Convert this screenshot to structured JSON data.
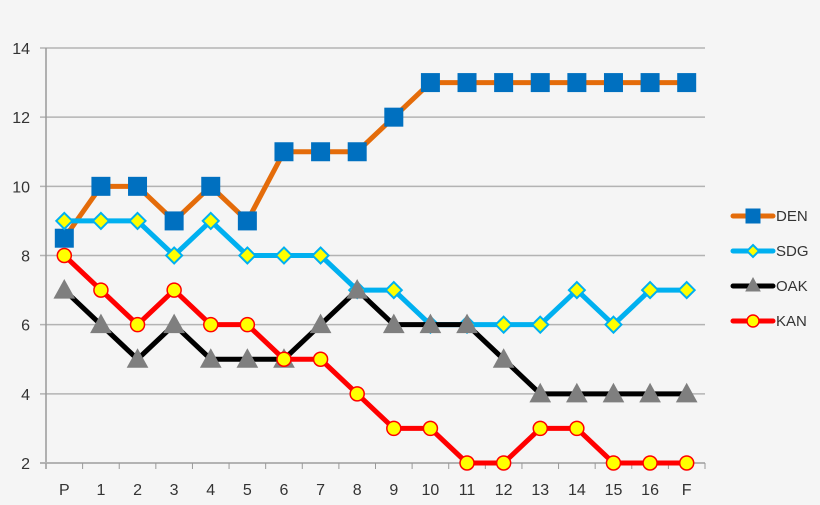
{
  "chart_data": {
    "type": "line",
    "title": "",
    "xlabel": "",
    "ylabel": "",
    "categories": [
      "P",
      "1",
      "2",
      "3",
      "4",
      "5",
      "6",
      "7",
      "8",
      "9",
      "10",
      "11",
      "12",
      "13",
      "14",
      "15",
      "16",
      "F"
    ],
    "ylim": [
      2,
      14
    ],
    "yticks": [
      2,
      4,
      6,
      8,
      10,
      12,
      14
    ],
    "grid": true,
    "legend_position": "right",
    "series": [
      {
        "name": "DEN",
        "line_color": "#e46c0a",
        "marker": "square",
        "marker_fill": "#0070c0",
        "marker_stroke": "#0070c0",
        "values": [
          8.5,
          10,
          10,
          9,
          10,
          9,
          11,
          11,
          11,
          12,
          13,
          13,
          13,
          13,
          13,
          13,
          13,
          13
        ]
      },
      {
        "name": "SDG",
        "line_color": "#00b0f0",
        "marker": "diamond",
        "marker_fill": "#ffff00",
        "marker_stroke": "#00b0f0",
        "values": [
          9,
          9,
          9,
          8,
          9,
          8,
          8,
          8,
          7,
          7,
          6,
          6,
          6,
          6,
          7,
          6,
          7,
          7
        ]
      },
      {
        "name": "OAK",
        "line_color": "#000000",
        "marker": "triangle",
        "marker_fill": "#7f7f7f",
        "marker_stroke": "#7f7f7f",
        "values": [
          7,
          6,
          5,
          6,
          5,
          5,
          5,
          6,
          7,
          6,
          6,
          6,
          5,
          4,
          4,
          4,
          4,
          4
        ]
      },
      {
        "name": "KAN",
        "line_color": "#ff0000",
        "marker": "circle",
        "marker_fill": "#ffff00",
        "marker_stroke": "#ff0000",
        "values": [
          8,
          7,
          6,
          7,
          6,
          6,
          5,
          5,
          4,
          3,
          3,
          2,
          2,
          3,
          3,
          2,
          2,
          2
        ]
      }
    ]
  },
  "colors": {
    "background": "#f5f5f5",
    "gridline": "#b3b3b3",
    "axis": "#999999",
    "text": "#333333"
  }
}
